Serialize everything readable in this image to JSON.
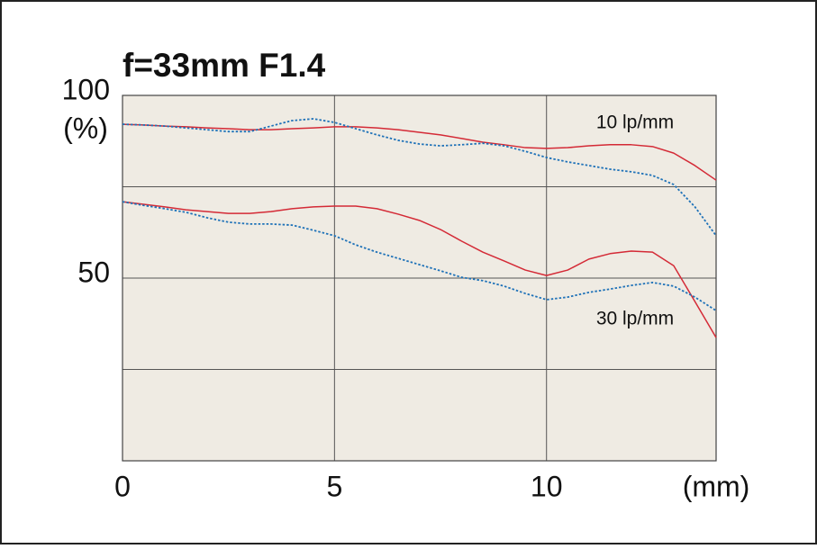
{
  "chart_data": {
    "type": "line",
    "title": "f=33mm F1.4",
    "x_unit": "(mm)",
    "y_unit": "(%)",
    "x": [
      0,
      0.5,
      1,
      1.5,
      2,
      2.5,
      3,
      3.5,
      4,
      4.5,
      5,
      5.5,
      6,
      6.5,
      7,
      7.5,
      8,
      8.5,
      9,
      9.5,
      10,
      10.5,
      11,
      11.5,
      12,
      12.5,
      13,
      13.5,
      14
    ],
    "series": [
      {
        "color": "#d42a36",
        "style": "solid",
        "values": [
          92.1,
          91.9,
          91.6,
          91.4,
          91.1,
          90.9,
          90.6,
          90.6,
          90.9,
          91.1,
          91.4,
          91.4,
          91.1,
          90.6,
          89.9,
          89.2,
          88.2,
          87.2,
          86.5,
          85.7,
          85.5,
          85.7,
          86.2,
          86.5,
          86.5,
          86.0,
          84.2,
          80.8,
          76.8
        ]
      },
      {
        "color": "#1f72b8",
        "style": "dotted",
        "values": [
          92.1,
          91.9,
          91.6,
          91.1,
          90.6,
          90.1,
          90.1,
          91.6,
          93.1,
          93.6,
          92.6,
          90.9,
          89.2,
          87.7,
          86.7,
          86.2,
          86.5,
          86.9,
          86.2,
          84.7,
          83.0,
          81.8,
          80.8,
          79.8,
          79.1,
          78.1,
          75.6,
          69.5,
          61.6
        ]
      },
      {
        "color": "#d42a36",
        "style": "solid",
        "values": [
          70.9,
          70.2,
          69.5,
          68.7,
          68.2,
          67.7,
          67.7,
          68.2,
          69.0,
          69.5,
          69.7,
          69.7,
          69.0,
          67.5,
          65.8,
          63.3,
          60.1,
          57.1,
          54.7,
          52.2,
          50.7,
          52.2,
          55.2,
          56.7,
          57.4,
          57.1,
          53.4,
          43.6,
          33.7
        ]
      },
      {
        "color": "#1f72b8",
        "style": "dotted",
        "values": [
          70.9,
          69.9,
          69.0,
          68.0,
          66.5,
          65.3,
          64.8,
          64.8,
          64.5,
          63.1,
          61.6,
          59.1,
          57.1,
          55.4,
          53.7,
          52.0,
          50.2,
          49.3,
          47.8,
          45.8,
          44.1,
          44.8,
          46.1,
          47.0,
          48.0,
          48.8,
          47.8,
          44.8,
          41.1
        ]
      }
    ],
    "annotations": [
      "10 lp/mm",
      "30 lp/mm"
    ],
    "xlim": [
      0,
      14
    ],
    "ylim": [
      0,
      100
    ],
    "xticks": [
      0,
      5,
      10
    ],
    "yticks": [
      50,
      100
    ],
    "ygrid": [
      25,
      50,
      75
    ],
    "grid": true
  }
}
